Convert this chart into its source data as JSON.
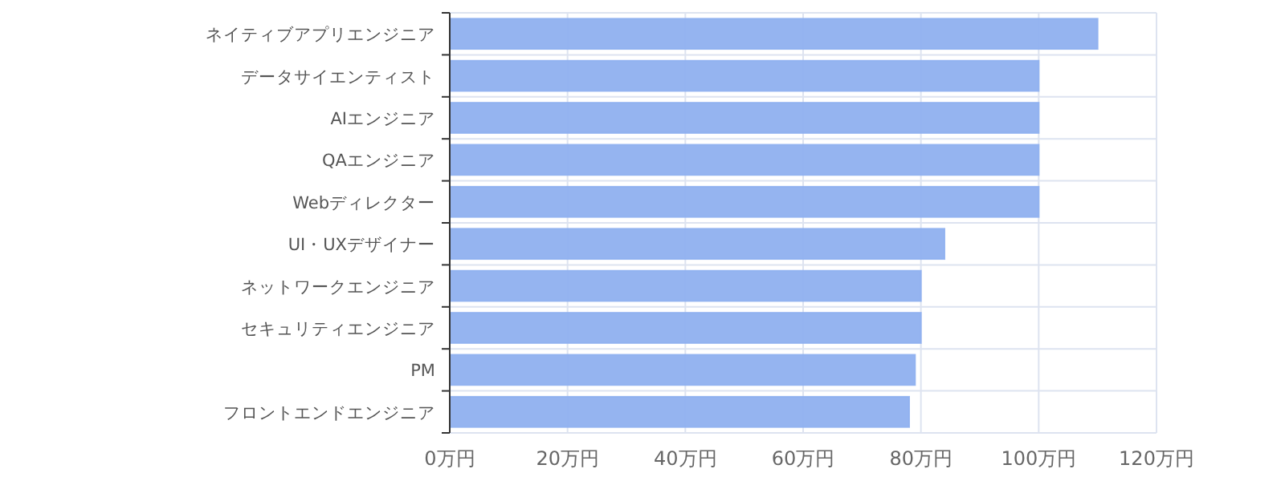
{
  "chart_data": {
    "type": "bar",
    "orientation": "horizontal",
    "categories": [
      "ネイティブアプリエンジニア",
      "データサイエンティスト",
      "AIエンジニア",
      "QAエンジニア",
      "Webディレクター",
      "UI・UXデザイナー",
      "ネットワークエンジニア",
      "セキュリティエンジニア",
      "PM",
      "フロントエンドエンジニア"
    ],
    "values": [
      110,
      100,
      100,
      100,
      100,
      84,
      80,
      80,
      79,
      78
    ],
    "color": "#8fb0ef",
    "xlim": [
      0,
      120
    ],
    "xticks": [
      {
        "value": 0,
        "label": "0万円"
      },
      {
        "value": 20,
        "label": "20万円"
      },
      {
        "value": 40,
        "label": "40万円"
      },
      {
        "value": 60,
        "label": "60万円"
      },
      {
        "value": 80,
        "label": "80万円"
      },
      {
        "value": 100,
        "label": "100万円"
      },
      {
        "value": 120,
        "label": "120万円"
      }
    ],
    "grid": true
  }
}
